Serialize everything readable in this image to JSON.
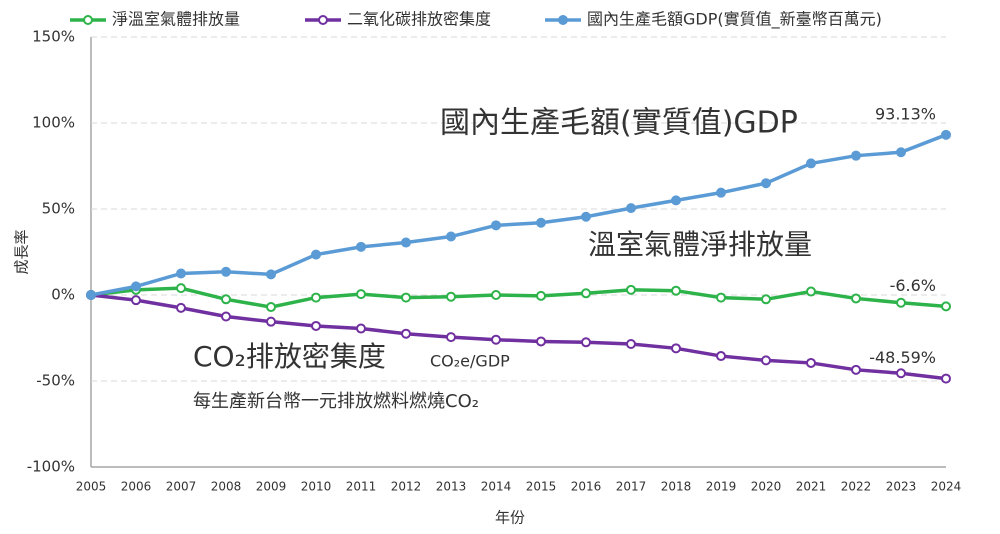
{
  "chart_data": {
    "type": "line",
    "x_label": "年份",
    "y_label": "成長率",
    "categories": [
      "2005",
      "2006",
      "2007",
      "2008",
      "2009",
      "2010",
      "2011",
      "2012",
      "2013",
      "2014",
      "2015",
      "2016",
      "2017",
      "2018",
      "2019",
      "2020",
      "2021",
      "2022",
      "2023",
      "2024"
    ],
    "ylim": [
      -100,
      150
    ],
    "yticks": [
      {
        "value": -100,
        "label": "-100%"
      },
      {
        "value": -50,
        "label": "-50%"
      },
      {
        "value": 0,
        "label": "0%"
      },
      {
        "value": 50,
        "label": "50%"
      },
      {
        "value": 100,
        "label": "100%"
      },
      {
        "value": 150,
        "label": "150%"
      }
    ],
    "grid": true,
    "legend": "top",
    "series": [
      {
        "name": "淨溫室氣體排放量",
        "color": "#2db34a",
        "values": [
          0,
          3,
          4,
          -2.5,
          -7,
          -1.5,
          0.5,
          -1.5,
          -1,
          0,
          -0.5,
          1,
          3,
          2.5,
          -1.5,
          -2.5,
          2,
          -2,
          -4.5,
          -6.6
        ],
        "value_labels": [
          null,
          null,
          null,
          null,
          null,
          null,
          null,
          null,
          null,
          null,
          null,
          null,
          null,
          null,
          null,
          null,
          null,
          null,
          null,
          "-6.6%"
        ]
      },
      {
        "name": "二氧化碳排放密集度",
        "color": "#7030a0",
        "values": [
          0,
          -3,
          -7.5,
          -12.5,
          -15.5,
          -18,
          -19.5,
          -22.5,
          -24.5,
          -26,
          -27,
          -27.5,
          -28.5,
          -31,
          -35.5,
          -38,
          -39.5,
          -43.5,
          -45.5,
          -48.59
        ],
        "value_labels": [
          null,
          null,
          null,
          null,
          null,
          null,
          null,
          null,
          null,
          null,
          null,
          null,
          null,
          null,
          null,
          null,
          null,
          null,
          null,
          "-48.59%"
        ]
      },
      {
        "name": "國內生產毛額GDP(實質值_新臺幣百萬元)",
        "color": "#5b9bd5",
        "values": [
          0,
          5,
          12.5,
          13.5,
          12,
          23.5,
          28,
          30.5,
          34,
          40.5,
          42,
          45.5,
          50.5,
          55,
          59.5,
          65,
          76.5,
          81,
          83,
          93.13
        ],
        "value_labels": [
          null,
          null,
          null,
          null,
          null,
          null,
          null,
          null,
          null,
          null,
          null,
          null,
          null,
          null,
          null,
          null,
          null,
          null,
          null,
          "93.13%"
        ]
      }
    ],
    "annotations": [
      "國內生產毛額(實質值)GDP",
      "溫室氣體淨排放量",
      "CO₂排放密集度",
      "CO₂e/GDP",
      "每生產新台幣一元排放燃料燃燒CO₂"
    ]
  }
}
